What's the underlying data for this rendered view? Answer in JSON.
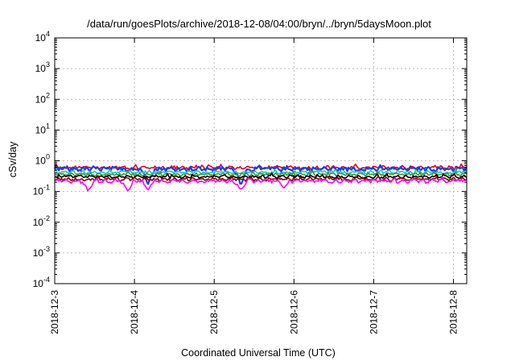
{
  "chart_data": {
    "type": "line",
    "title": "/data/run/goesPlots/archive/2018-12-08/04:00/bryn/../bryn/5daysMoon.plot",
    "xlabel": "Coordinated Universal Time (UTC)",
    "ylabel": "cSv/day",
    "yscale": "log",
    "ylim": [
      0.0001,
      10000
    ],
    "xlim": [
      "2018-12-03T00:00",
      "2018-12-08T04:00"
    ],
    "grid": true,
    "legend": "none",
    "y_ticks": [
      {
        "value": 10000,
        "base": "10",
        "exp": "4"
      },
      {
        "value": 1000,
        "base": "10",
        "exp": "3"
      },
      {
        "value": 100,
        "base": "10",
        "exp": "2"
      },
      {
        "value": 10,
        "base": "10",
        "exp": "1"
      },
      {
        "value": 1,
        "base": "10",
        "exp": "0"
      },
      {
        "value": 0.1,
        "base": "10",
        "exp": "-1"
      },
      {
        "value": 0.01,
        "base": "10",
        "exp": "-2"
      },
      {
        "value": 0.001,
        "base": "10",
        "exp": "-3"
      },
      {
        "value": 0.0001,
        "base": "10",
        "exp": "-4"
      }
    ],
    "x_ticks": [
      {
        "value": "2018-12-03T00:00",
        "label": "2018-12-3"
      },
      {
        "value": "2018-12-04T00:00",
        "label": "2018-12-4"
      },
      {
        "value": "2018-12-05T00:00",
        "label": "2018-12-5"
      },
      {
        "value": "2018-12-06T00:00",
        "label": "2018-12-6"
      },
      {
        "value": "2018-12-07T00:00",
        "label": "2018-12-7"
      },
      {
        "value": "2018-12-08T00:00",
        "label": "2018-12-8"
      }
    ],
    "series": [
      {
        "color": "#e8001c",
        "base": 0.6,
        "jitter": 0.08,
        "dips": []
      },
      {
        "color": "#1f3cf0",
        "base": 0.54,
        "jitter": 0.09,
        "dips": [
          [
            "2018-12-04T04:00",
            0.16
          ],
          [
            "2018-12-05T08:00",
            0.15
          ]
        ]
      },
      {
        "color": "#19c6d6",
        "base": 0.42,
        "jitter": 0.05,
        "dips": []
      },
      {
        "color": "#33a02c",
        "base": 0.36,
        "jitter": 0.04,
        "dips": []
      },
      {
        "color": "#000000",
        "base": 0.3,
        "jitter": 0.03,
        "dips": []
      },
      {
        "color": "#8a0000",
        "base": 0.25,
        "jitter": 0.03,
        "dips": []
      },
      {
        "color": "#ff00ff",
        "base": 0.22,
        "jitter": 0.03,
        "dips": [
          [
            "2018-12-03T10:00",
            0.1
          ],
          [
            "2018-12-03T22:00",
            0.1
          ],
          [
            "2018-12-04T04:00",
            0.11
          ],
          [
            "2018-12-05T08:00",
            0.11
          ],
          [
            "2018-12-05T21:00",
            0.13
          ]
        ]
      }
    ]
  }
}
